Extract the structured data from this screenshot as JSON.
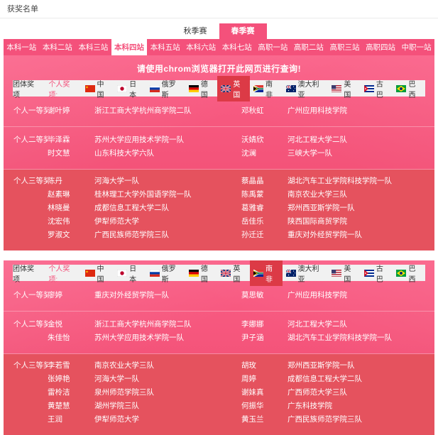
{
  "page": {
    "title": "获奖名单"
  },
  "colors": {
    "primary_pink": "#f4517b",
    "tier3_red": "#e5525e",
    "flag_selected_red": "#dc3a46",
    "flag_bar_bg": "#f1f1f1"
  },
  "season_tabs": {
    "items": [
      "秋季赛",
      "春季赛"
    ],
    "selected": "春季赛"
  },
  "station_tabs": {
    "items": [
      "本科一站",
      "本科二站",
      "本科三站",
      "本科四站",
      "本科五站",
      "本科六站",
      "本科七站",
      "高职一站",
      "高职二站",
      "高职三站",
      "高职四站",
      "中职一站"
    ],
    "selected": "本科四站"
  },
  "notice": "请使用chrom浏览器打开此网页进行查询!",
  "flag_bar": {
    "team_label": "团体奖项",
    "individual_label": "个人奖项:",
    "countries": [
      {
        "name": "中国",
        "flag": "cn"
      },
      {
        "name": "日本",
        "flag": "jp"
      },
      {
        "name": "俄罗斯",
        "flag": "ru"
      },
      {
        "name": "德国",
        "flag": "de"
      },
      {
        "name": "英国",
        "flag": "gb"
      },
      {
        "name": "南非",
        "flag": "za"
      },
      {
        "name": "澳大利亚",
        "flag": "au"
      },
      {
        "name": "美国",
        "flag": "us"
      },
      {
        "name": "古巴",
        "flag": "cu"
      },
      {
        "name": "巴西",
        "flag": "br"
      }
    ]
  },
  "blocks": [
    {
      "selected_country": "英国",
      "show_notice": true,
      "sections": [
        {
          "label": "个人一等奖:",
          "tier": "first",
          "rows": [
            [
              "谢叶婷",
              "浙江工商大学杭州商学院二队",
              "邓秋虹",
              "广州应用科技学院"
            ]
          ]
        },
        {
          "label": "个人二等奖:",
          "tier": "second",
          "rows": [
            [
              "毕泽霖",
              "苏州大学应用技术学院一队",
              "沃婧欣",
              "河北工程大学二队"
            ],
            [
              "时文慧",
              "山东科技大学六队",
              "沈澜",
              "三峡大学一队"
            ]
          ]
        },
        {
          "label": "个人三等奖:",
          "tier": "third",
          "rows": [
            [
              "陈丹",
              "河海大学一队",
              "蔡晶晶",
              "湖北汽车工业学院科技学院一队"
            ],
            [
              "赵素琳",
              "桂林理工大学外国语学院一队",
              "陈禹蒙",
              "南京农业大学三队"
            ],
            [
              "林晓曼",
              "成都信息工程大学二队",
              "葛雅睿",
              "郑州西亚斯学院一队"
            ],
            [
              "沈宏伟",
              "伊犁师范大学",
              "岳佳乐",
              "陕西国际商贸学院"
            ],
            [
              "罗淑文",
              "广西民族师范学院三队",
              "孙迁迁",
              "重庆对外经贸学院一队"
            ]
          ]
        }
      ]
    },
    {
      "selected_country": "南非",
      "show_notice": false,
      "sections": [
        {
          "label": "个人一等奖:",
          "tier": "first",
          "rows": [
            [
              "廖婷",
              "重庆对外经贸学院一队",
              "莫思敏",
              "广州应用科技学院"
            ]
          ]
        },
        {
          "label": "个人二等奖:",
          "tier": "second",
          "rows": [
            [
              "金悦",
              "浙江工商大学杭州商学院二队",
              "李娜娜",
              "河北工程大学二队"
            ],
            [
              "朱佳怡",
              "苏州大学应用技术学院一队",
              "尹子涵",
              "湖北汽车工业学院科技学院一队"
            ]
          ]
        },
        {
          "label": "个人三等奖:",
          "tier": "third",
          "rows": [
            [
              "李若雪",
              "南京农业大学三队",
              "胡玫",
              "郑州西亚斯学院一队"
            ],
            [
              "张婷艳",
              "河海大学一队",
              "周婷",
              "成都信息工程大学二队"
            ],
            [
              "雷柃洁",
              "泉州师范学院三队",
              "谢妹真",
              "广西师范大学三队"
            ],
            [
              "黄楚慧",
              "湖州学院三队",
              "何振华",
              "广东科技学院"
            ],
            [
              "王润",
              "伊犁师范大学",
              "黄玉兰",
              "广西民族师范学院三队"
            ]
          ]
        }
      ]
    }
  ]
}
